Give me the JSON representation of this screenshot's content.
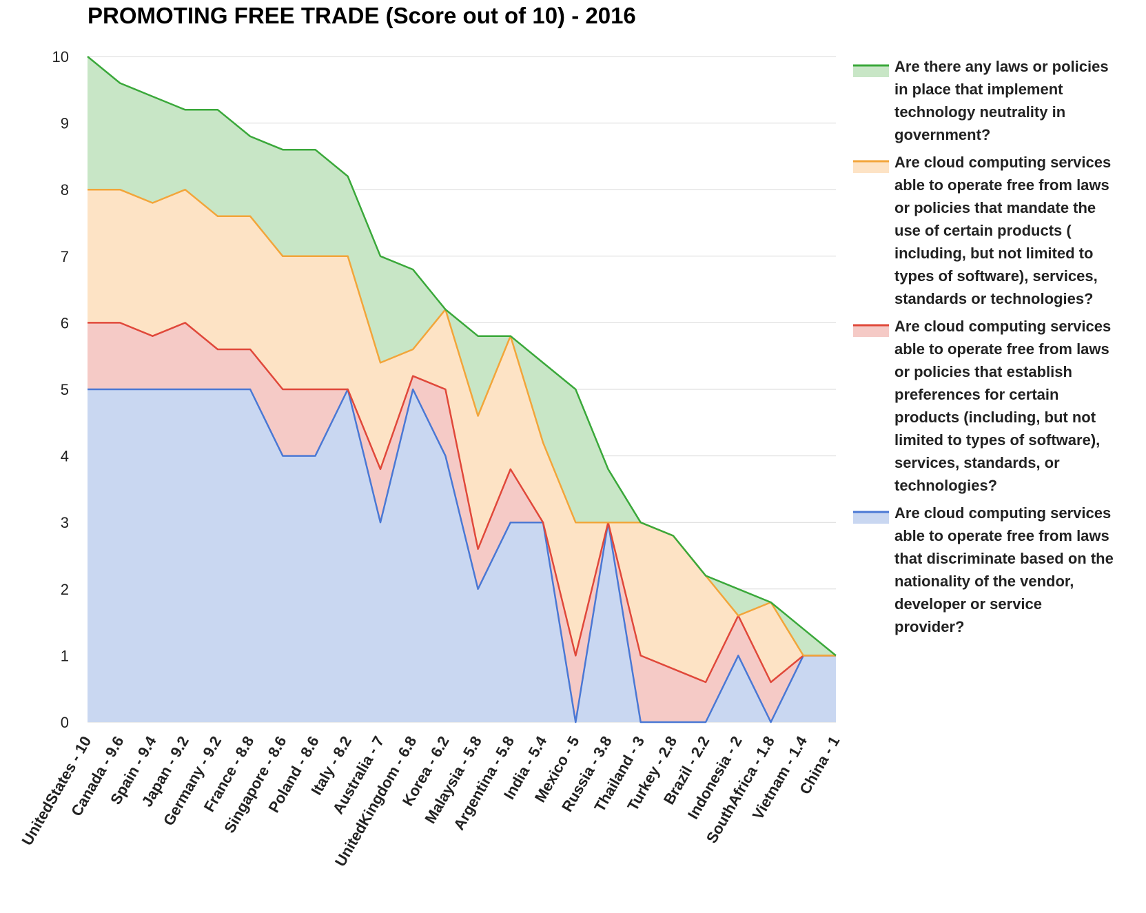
{
  "chart_data": {
    "type": "area",
    "title": "PROMOTING FREE TRADE (Score out of 10) - 2016",
    "xlabel": "",
    "ylabel": "",
    "ylim": [
      0,
      10
    ],
    "yticks": [
      "0",
      "1",
      "2",
      "3",
      "4",
      "5",
      "6",
      "7",
      "8",
      "9",
      "10"
    ],
    "grid": true,
    "legend_position": "right",
    "categories": [
      "UnitedStates - 10",
      "Canada - 9.6",
      "Spain - 9.4",
      "Japan - 9.2",
      "Germany - 9.2",
      "France - 8.8",
      "Singapore - 8.6",
      "Poland - 8.6",
      "Italy - 8.2",
      "Australia - 7",
      "UnitedKingdom - 6.8",
      "Korea - 6.2",
      "Malaysia - 5.8",
      "Argentina - 5.8",
      "India - 5.4",
      "Mexico - 5",
      "Russia - 3.8",
      "Thailand - 3",
      "Turkey - 2.8",
      "Brazil - 2.2",
      "Indonesia - 2",
      "SouthAfrica - 1.8",
      "Vietnam - 1.4",
      "China - 1"
    ],
    "series": [
      {
        "name": "Are there any laws or policies in place that implement technology neutrality in government?",
        "legend_lines": [
          "Are there any laws or policies",
          "in place that implement",
          "technology neutrality in",
          "government?"
        ],
        "line_color": "#3aa83a",
        "fill_color": "#c8e6c6",
        "values": [
          10,
          9.6,
          9.4,
          9.2,
          9.2,
          8.8,
          8.6,
          8.6,
          8.2,
          7,
          6.8,
          6.2,
          5.8,
          5.8,
          5.4,
          5,
          3.8,
          3,
          2.8,
          2.2,
          2,
          1.8,
          1.4,
          1
        ]
      },
      {
        "name": "Are cloud computing services able to operate free from laws or policies that mandate the use of certain products ( including, but not limited to types of software), services, standards or technologies?",
        "legend_lines": [
          "Are cloud computing services",
          "able to operate free from laws",
          "or policies that mandate the",
          "use of certain products (",
          "including, but not limited to",
          "types of software), services,",
          "standards or technologies?"
        ],
        "line_color": "#f2a53a",
        "fill_color": "#fde3c5",
        "values": [
          8,
          8,
          7.8,
          8,
          7.6,
          7.6,
          7,
          7,
          7,
          5.4,
          5.6,
          6.2,
          4.6,
          5.8,
          4.2,
          3,
          3,
          3,
          2.8,
          2.2,
          1.6,
          1.8,
          1,
          1
        ]
      },
      {
        "name": "Are cloud computing services able to operate free from laws or policies that establish preferences for certain products (including, but not limited to types of software), services, standards, or technologies?",
        "legend_lines": [
          "Are cloud computing services",
          "able to operate free from laws",
          "or policies that establish",
          "preferences for certain",
          "products (including, but not",
          "limited to types of software),",
          "services, standards, or",
          "technologies?"
        ],
        "line_color": "#e0483a",
        "fill_color": "#f5cac6",
        "values": [
          6,
          6,
          5.8,
          6,
          5.6,
          5.6,
          5,
          5,
          5,
          3.8,
          5.2,
          5,
          2.6,
          3.8,
          3,
          1,
          3,
          1,
          0.8,
          0.6,
          1.6,
          0.6,
          1,
          1
        ]
      },
      {
        "name": "Are cloud computing services able to operate free from laws that discriminate based on the nationality of the vendor, developer or service provider?",
        "legend_lines": [
          "Are cloud computing services",
          "able to operate free from laws",
          "that discriminate based on the",
          "nationality of the vendor,",
          "developer or service",
          "provider?"
        ],
        "line_color": "#4a78d4",
        "fill_color": "#c9d7f1",
        "values": [
          5,
          5,
          5,
          5,
          5,
          5,
          4,
          4,
          5,
          3,
          5,
          4,
          2,
          3,
          3,
          0,
          3,
          0,
          0,
          0,
          1,
          0,
          1,
          1
        ]
      }
    ]
  }
}
